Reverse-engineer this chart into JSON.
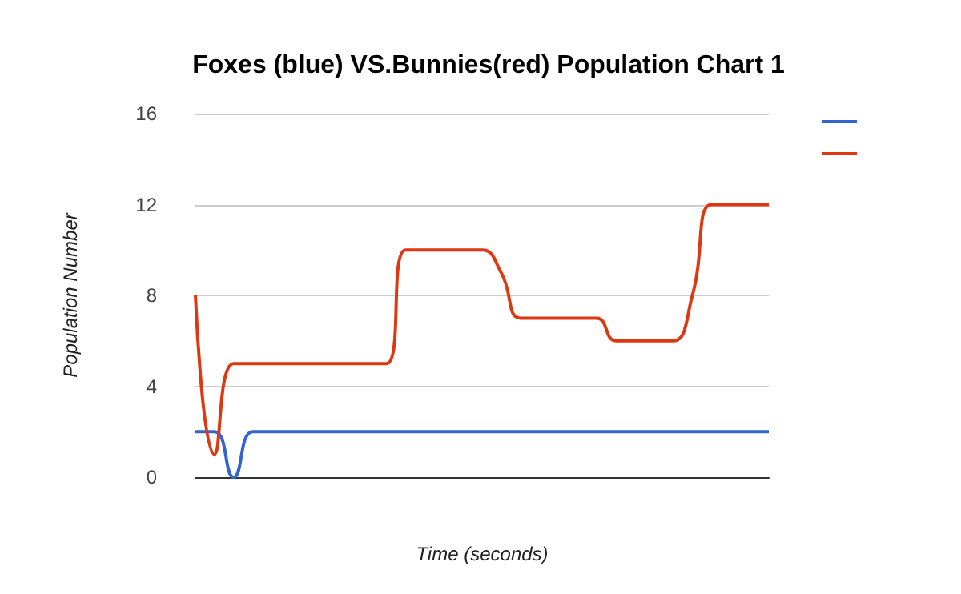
{
  "chart_data": {
    "type": "line",
    "title": "Foxes (blue) VS.Bunnies(red) Population Chart 1",
    "xlabel": "Time (seconds)",
    "ylabel": "Population Number",
    "categories": [
      null,
      null,
      null,
      null,
      null,
      null,
      null,
      null,
      null,
      null,
      null,
      null,
      null,
      null,
      null,
      null,
      null,
      null,
      null,
      null,
      null,
      null,
      null,
      null,
      null,
      null,
      null,
      null,
      null,
      null,
      null
    ],
    "series": [
      {
        "color": "#3366cc",
        "values": [
          2,
          2,
          0,
          2,
          2,
          2,
          2,
          2,
          2,
          2,
          2,
          2,
          2,
          2,
          2,
          2,
          2,
          2,
          2,
          2,
          2,
          2,
          2,
          2,
          2,
          2,
          2,
          2,
          2,
          2,
          2
        ]
      },
      {
        "color": "#dc3912",
        "values": [
          8,
          1,
          5,
          5,
          5,
          5,
          5,
          5,
          5,
          5,
          5,
          10,
          10,
          10,
          10,
          10,
          9,
          7,
          7,
          7,
          7,
          7,
          6,
          6,
          6,
          6,
          8,
          12,
          12,
          12,
          12
        ]
      }
    ],
    "ylim": [
      0,
      16
    ],
    "yticks": [
      0,
      4,
      8,
      12,
      16
    ],
    "grid": "y",
    "tick_labels": "y",
    "marker": "none",
    "line_style": "solid"
  }
}
